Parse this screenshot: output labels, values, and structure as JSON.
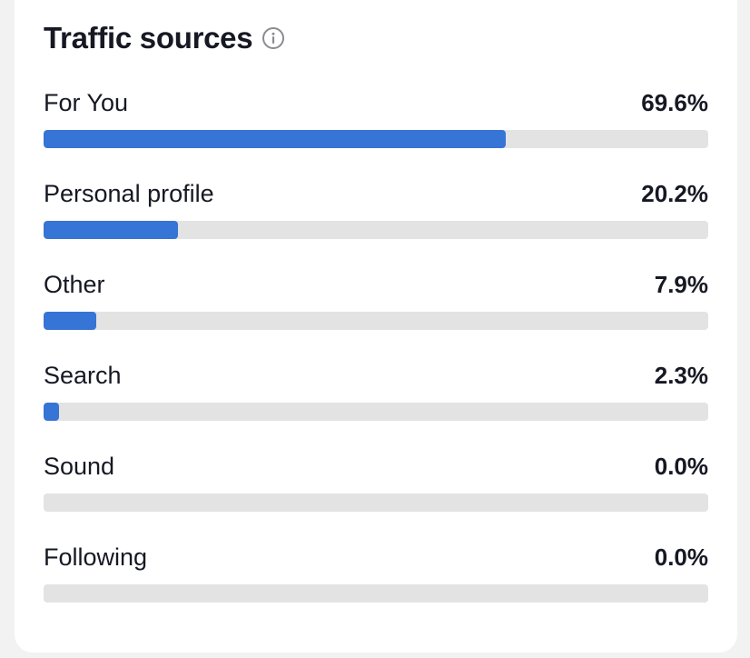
{
  "title": "Traffic sources",
  "icons": {
    "info": "info-circle-icon"
  },
  "colors": {
    "bar_fill": "#3674d6",
    "bar_track": "#e3e3e4",
    "text": "#161823"
  },
  "sources": [
    {
      "label": "For You",
      "value": "69.6%",
      "fraction": 0.696
    },
    {
      "label": "Personal profile",
      "value": "20.2%",
      "fraction": 0.202
    },
    {
      "label": "Other",
      "value": "7.9%",
      "fraction": 0.079
    },
    {
      "label": "Search",
      "value": "2.3%",
      "fraction": 0.023
    },
    {
      "label": "Sound",
      "value": "0.0%",
      "fraction": 0.0
    },
    {
      "label": "Following",
      "value": "0.0%",
      "fraction": 0.0
    }
  ]
}
